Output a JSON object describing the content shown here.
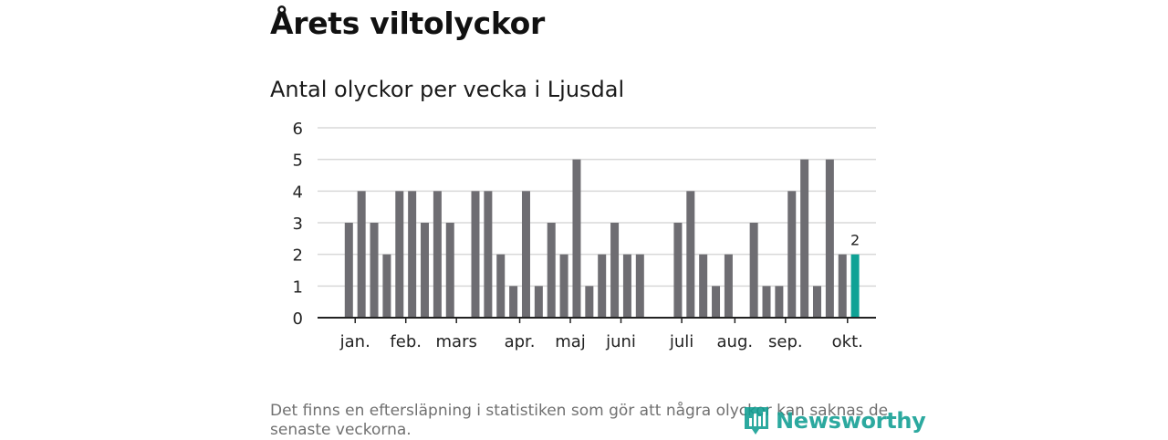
{
  "title": "Årets viltolyckor",
  "subtitle": "Antal olyckor per vecka i Ljusdal",
  "footnote": "Det finns en eftersläpning i statistiken som gör att några olyckor kan saknas de senaste veckorna.",
  "logo_text": "Newsworthy",
  "colors": {
    "bar": "#6e6d72",
    "highlight": "#0fa295",
    "grid": "#d9d9d9",
    "axis": "#222222",
    "logo": "#0f9e92"
  },
  "chart_data": {
    "type": "bar",
    "title": "Antal olyckor per vecka i Ljusdal",
    "xlabel": "",
    "ylabel": "",
    "ylim": [
      0,
      6
    ],
    "yticks": [
      0,
      1,
      2,
      3,
      4,
      5,
      6
    ],
    "grid": true,
    "weeks": [
      1,
      2,
      3,
      4,
      5,
      6,
      7,
      8,
      9,
      10,
      11,
      12,
      13,
      14,
      15,
      16,
      17,
      18,
      19,
      20,
      21,
      22,
      23,
      24,
      25,
      26,
      27,
      28,
      29,
      30,
      31,
      32,
      33,
      34,
      35,
      36,
      37,
      38,
      39,
      40,
      41,
      42
    ],
    "values": [
      3,
      4,
      3,
      2,
      4,
      4,
      3,
      4,
      3,
      0,
      4,
      4,
      2,
      1,
      4,
      1,
      3,
      2,
      5,
      1,
      2,
      3,
      2,
      2,
      0,
      0,
      3,
      4,
      2,
      1,
      2,
      0,
      3,
      1,
      1,
      4,
      5,
      1,
      5,
      2,
      2,
      0
    ],
    "highlight_index": 40,
    "highlight_label": "2",
    "month_labels": [
      {
        "label": "jan.",
        "week": 1.5
      },
      {
        "label": "feb.",
        "week": 5.5
      },
      {
        "label": "mars",
        "week": 9.5
      },
      {
        "label": "apr.",
        "week": 14.5
      },
      {
        "label": "maj",
        "week": 18.5
      },
      {
        "label": "juni",
        "week": 22.5
      },
      {
        "label": "juli",
        "week": 27.3
      },
      {
        "label": "aug.",
        "week": 31.5
      },
      {
        "label": "sep.",
        "week": 35.5
      },
      {
        "label": "okt.",
        "week": 40.4
      }
    ]
  }
}
